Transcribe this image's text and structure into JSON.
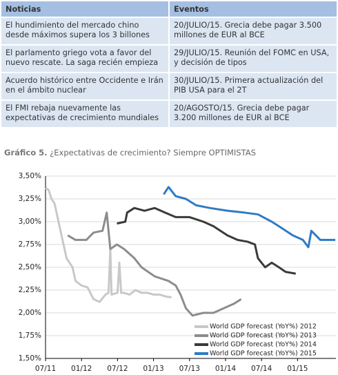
{
  "table": {
    "headers": [
      "Noticias",
      "Eventos"
    ],
    "rows": [
      [
        "El hundimiento del mercado chino desde máximos supera los 3 billones",
        "20/JULIO/15. Grecia debe pagar 3.500 millones de EUR al BCE"
      ],
      [
        "El parlamento griego vota a favor del nuevo rescate. La saga recién empieza",
        "29/JULIO/15. Reunión del FOMC en USA, y decisión de tipos"
      ],
      [
        "Acuerdo histórico entre Occidente e Irán en el ámbito nuclear",
        "30/JULIO/15. Primera actualización del PIB USA para el 2T"
      ],
      [
        "El FMI rebaja nuevamente las expectativas de crecimiento mundiales",
        "20/AGOSTO/15. Grecia debe pagar 3.200 millones de EUR al BCE"
      ]
    ]
  },
  "caption": {
    "label": "Gráfico 5.",
    "text": "¿Expectativas de crecimiento? Siempre OPTIMISTAS"
  },
  "chart_data": {
    "type": "line",
    "grid": true,
    "legend": "bottom-right",
    "xlim": [
      0,
      48.4
    ],
    "xticks": [
      {
        "value": 0,
        "label": "07/11"
      },
      {
        "value": 6,
        "label": "01/12"
      },
      {
        "value": 12,
        "label": "07/12"
      },
      {
        "value": 18,
        "label": "01/13"
      },
      {
        "value": 24,
        "label": "07/13"
      },
      {
        "value": 30,
        "label": "01/14"
      },
      {
        "value": 36,
        "label": "07/14"
      },
      {
        "value": 42,
        "label": "01/15"
      }
    ],
    "ylim": [
      1.5,
      3.5
    ],
    "yticks": [
      {
        "value": 1.5,
        "label": "1,50%"
      },
      {
        "value": 1.75,
        "label": "1,75%"
      },
      {
        "value": 2,
        "label": "2,00%"
      },
      {
        "value": 2.25,
        "label": "2,25%"
      },
      {
        "value": 2.5,
        "label": "2,50%"
      },
      {
        "value": 2.75,
        "label": "2,75%"
      },
      {
        "value": 3,
        "label": "3,00%"
      },
      {
        "value": 3.25,
        "label": "3,25%"
      },
      {
        "value": 3.5,
        "label": "3,50%"
      }
    ],
    "series": [
      {
        "name": "World GDP forecast (YoY%) 2012",
        "color": "#c8c8c8",
        "x": [
          0,
          0.5,
          1,
          1.5,
          2,
          2.5,
          3,
          3.5,
          4,
          4.5,
          5,
          6,
          7,
          8,
          9,
          10,
          10.5,
          10.8,
          11,
          12,
          12.3,
          12.6,
          13,
          14,
          15,
          16,
          17,
          18,
          19,
          20,
          21
        ],
        "values": [
          3.37,
          3.35,
          3.25,
          3.2,
          3.05,
          2.9,
          2.75,
          2.6,
          2.55,
          2.5,
          2.35,
          2.3,
          2.28,
          2.15,
          2.12,
          2.2,
          2.22,
          2.7,
          2.2,
          2.22,
          2.55,
          2.22,
          2.22,
          2.2,
          2.25,
          2.22,
          2.22,
          2.2,
          2.2,
          2.18,
          2.17
        ]
      },
      {
        "name": "World GDP forecast (YoY%) 2013",
        "color": "#8c8c8c",
        "x": [
          3.7,
          5,
          6.8,
          8,
          9.5,
          10.2,
          10.8,
          11.9,
          13.1,
          14.8,
          16,
          17.1,
          18.2,
          20.5,
          21.7,
          22.5,
          23.4,
          24.5,
          26.3,
          28,
          29.7,
          31.4,
          32.6
        ],
        "values": [
          2.85,
          2.8,
          2.8,
          2.88,
          2.9,
          3.1,
          2.7,
          2.75,
          2.7,
          2.6,
          2.5,
          2.45,
          2.4,
          2.35,
          2.3,
          2.2,
          2.05,
          1.97,
          2.0,
          2.0,
          2.05,
          2.1,
          2.15
        ]
      },
      {
        "name": "World GDP forecast (YoY%) 2014",
        "color": "#3a3a3a",
        "x": [
          11.9,
          13.3,
          13.6,
          14.8,
          16.5,
          18.2,
          19.9,
          21.7,
          24,
          26.3,
          28,
          30.3,
          32,
          33.7,
          34.9,
          35.4,
          36.6,
          37.7,
          38.9,
          40,
          41.7
        ],
        "values": [
          2.98,
          3.0,
          3.1,
          3.15,
          3.12,
          3.15,
          3.1,
          3.05,
          3.05,
          3.0,
          2.95,
          2.85,
          2.8,
          2.78,
          2.75,
          2.6,
          2.5,
          2.55,
          2.5,
          2.45,
          2.43
        ]
      },
      {
        "name": "World GDP forecast (YoY%) 2015",
        "color": "#2e7bc4",
        "x": [
          19.7,
          20.5,
          21.7,
          23.4,
          25.1,
          27.4,
          30.3,
          33.1,
          35.4,
          37.7,
          38.9,
          41.2,
          42.9,
          43.8,
          44.3,
          45.8,
          48.3
        ],
        "values": [
          3.3,
          3.38,
          3.28,
          3.25,
          3.18,
          3.15,
          3.12,
          3.1,
          3.08,
          3.0,
          2.95,
          2.85,
          2.8,
          2.72,
          2.9,
          2.8,
          2.8
        ]
      }
    ]
  }
}
